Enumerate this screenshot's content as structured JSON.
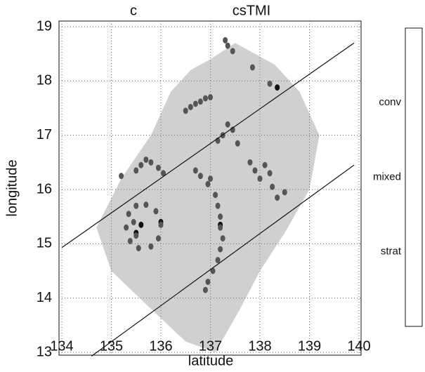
{
  "chart_data": {
    "type": "scatter",
    "panel_label": "c",
    "title": "csTMI",
    "x_label": "latitude",
    "y_label": "longitude",
    "xlim": [
      134,
      140
    ],
    "ylim": [
      13,
      19
    ],
    "xticks": [
      134,
      135,
      136,
      137,
      138,
      139,
      140
    ],
    "yticks": [
      13,
      14,
      15,
      16,
      17,
      18,
      19
    ],
    "grid": true,
    "series": [
      {
        "name": "conv",
        "color": "#111111",
        "x": [
          135.5,
          135.6,
          136.0,
          137.2,
          138.35
        ],
        "y": [
          15.2,
          15.35,
          15.4,
          15.35,
          17.88
        ]
      },
      {
        "name": "mixed",
        "color": "#555555",
        "x": [
          135.3,
          135.35,
          135.5,
          135.7,
          135.9,
          136.0,
          135.95,
          135.8,
          135.55,
          135.38,
          135.45,
          135.5,
          135.5,
          135.6,
          135.7,
          135.8,
          135.95,
          136.05,
          135.2,
          136.5,
          136.6,
          136.7,
          136.8,
          136.9,
          137.0,
          137.3,
          137.35,
          137.45,
          137.85,
          138.2,
          137.15,
          137.25,
          137.35,
          137.45,
          137.55,
          136.7,
          136.8,
          136.95,
          137.0,
          137.1,
          137.15,
          137.2,
          137.2,
          137.25,
          137.2,
          137.15,
          137.05,
          136.95,
          136.9,
          137.8,
          137.9,
          138.0,
          138.1,
          138.2,
          138.25,
          138.35,
          138.5
        ],
        "y": [
          15.3,
          15.55,
          15.7,
          15.72,
          15.6,
          15.35,
          15.1,
          14.95,
          14.92,
          15.05,
          15.4,
          15.15,
          16.35,
          16.45,
          16.55,
          16.5,
          16.4,
          16.3,
          16.25,
          17.45,
          17.52,
          17.58,
          17.62,
          17.68,
          17.7,
          18.75,
          18.65,
          18.55,
          18.25,
          17.95,
          16.9,
          17.0,
          17.2,
          17.1,
          16.85,
          16.35,
          16.25,
          16.1,
          16.2,
          15.9,
          15.7,
          15.5,
          15.3,
          15.1,
          14.9,
          14.7,
          14.5,
          14.3,
          14.15,
          16.5,
          16.35,
          16.2,
          16.45,
          16.3,
          16.05,
          15.85,
          15.95
        ]
      },
      {
        "name": "strat",
        "color": "#c8c8c8",
        "x": [
          134.7,
          135.2,
          135.8,
          136.2,
          136.6,
          137.0,
          137.5,
          138.3,
          138.8,
          139.2,
          139.0,
          138.5,
          138.0,
          137.6,
          137.1,
          136.5,
          135.8,
          135.0
        ],
        "y": [
          15.3,
          16.2,
          17.0,
          17.8,
          18.2,
          18.4,
          18.7,
          18.3,
          17.8,
          17.0,
          16.0,
          15.2,
          14.5,
          13.8,
          13.0,
          13.2,
          13.8,
          14.5
        ]
      }
    ],
    "lines": [
      {
        "x": [
          134,
          139.9
        ],
        "y": [
          14.93,
          18.7
        ]
      },
      {
        "x": [
          134.6,
          139.9
        ],
        "y": [
          12.93,
          16.45
        ]
      }
    ]
  }
}
